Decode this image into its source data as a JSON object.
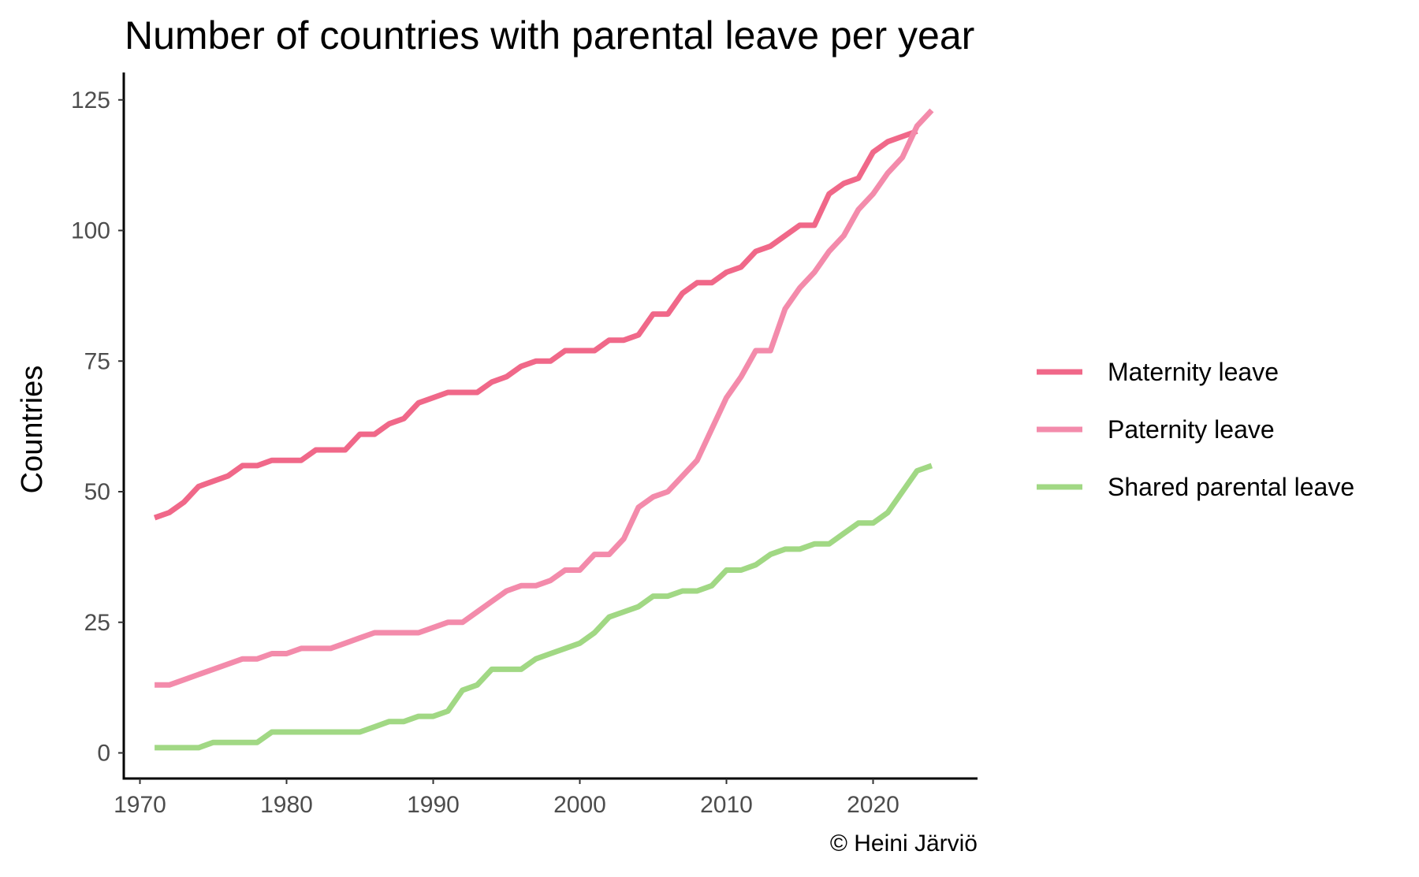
{
  "chart_data": {
    "type": "line",
    "title": "Number of countries with parental leave per year",
    "xlabel": "",
    "ylabel": "Countries",
    "caption": "© Heini Järviö",
    "xlim": [
      1970,
      2026
    ],
    "ylim": [
      0,
      125
    ],
    "x_ticks": [
      1970,
      1980,
      1990,
      2000,
      2010,
      2020
    ],
    "y_ticks": [
      0,
      25,
      50,
      75,
      100,
      125
    ],
    "grid": false,
    "legend_position": "right",
    "series": [
      {
        "name": "Maternity leave",
        "color": "#f06889",
        "x": [
          1971,
          1972,
          1973,
          1974,
          1975,
          1976,
          1977,
          1978,
          1979,
          1980,
          1981,
          1982,
          1983,
          1984,
          1985,
          1986,
          1987,
          1988,
          1989,
          1990,
          1991,
          1992,
          1993,
          1994,
          1995,
          1996,
          1997,
          1998,
          1999,
          2000,
          2001,
          2002,
          2003,
          2004,
          2005,
          2006,
          2007,
          2008,
          2009,
          2010,
          2011,
          2012,
          2013,
          2014,
          2015,
          2016,
          2017,
          2018,
          2019,
          2020,
          2021,
          2022,
          2023
        ],
        "values": [
          45,
          46,
          48,
          51,
          52,
          53,
          55,
          55,
          56,
          56,
          56,
          58,
          58,
          58,
          61,
          61,
          63,
          64,
          67,
          68,
          69,
          69,
          69,
          71,
          72,
          74,
          75,
          75,
          77,
          77,
          77,
          79,
          79,
          80,
          84,
          84,
          88,
          90,
          90,
          92,
          93,
          96,
          97,
          99,
          101,
          101,
          107,
          109,
          110,
          115,
          117,
          118,
          119
        ]
      },
      {
        "name": "Paternity leave",
        "color": "#f38bab",
        "x": [
          1971,
          1972,
          1973,
          1974,
          1975,
          1976,
          1977,
          1978,
          1979,
          1980,
          1981,
          1982,
          1983,
          1984,
          1985,
          1986,
          1987,
          1988,
          1989,
          1990,
          1991,
          1992,
          1993,
          1994,
          1995,
          1996,
          1997,
          1998,
          1999,
          2000,
          2001,
          2002,
          2003,
          2004,
          2005,
          2006,
          2007,
          2008,
          2009,
          2010,
          2011,
          2012,
          2013,
          2014,
          2015,
          2016,
          2017,
          2018,
          2019,
          2020,
          2021,
          2022,
          2023,
          2024
        ],
        "values": [
          13,
          13,
          14,
          15,
          16,
          17,
          18,
          18,
          19,
          19,
          20,
          20,
          20,
          21,
          22,
          23,
          23,
          23,
          23,
          24,
          25,
          25,
          27,
          29,
          31,
          32,
          32,
          33,
          35,
          35,
          38,
          38,
          41,
          47,
          49,
          50,
          53,
          56,
          62,
          68,
          72,
          77,
          77,
          85,
          89,
          92,
          96,
          99,
          104,
          107,
          111,
          114,
          120,
          123
        ]
      },
      {
        "name": "Shared parental leave",
        "color": "#a1d884",
        "x": [
          1971,
          1972,
          1973,
          1974,
          1975,
          1976,
          1977,
          1978,
          1979,
          1980,
          1981,
          1982,
          1983,
          1984,
          1985,
          1986,
          1987,
          1988,
          1989,
          1990,
          1991,
          1992,
          1993,
          1994,
          1995,
          1996,
          1997,
          1998,
          1999,
          2000,
          2001,
          2002,
          2003,
          2004,
          2005,
          2006,
          2007,
          2008,
          2009,
          2010,
          2011,
          2012,
          2013,
          2014,
          2015,
          2016,
          2017,
          2018,
          2019,
          2020,
          2021,
          2022,
          2023,
          2024
        ],
        "values": [
          1,
          1,
          1,
          1,
          2,
          2,
          2,
          2,
          4,
          4,
          4,
          4,
          4,
          4,
          4,
          5,
          6,
          6,
          7,
          7,
          8,
          12,
          13,
          16,
          16,
          16,
          18,
          19,
          20,
          21,
          23,
          26,
          27,
          28,
          30,
          30,
          31,
          31,
          32,
          35,
          35,
          36,
          38,
          39,
          39,
          40,
          40,
          42,
          44,
          44,
          46,
          50,
          54,
          55
        ]
      }
    ]
  }
}
